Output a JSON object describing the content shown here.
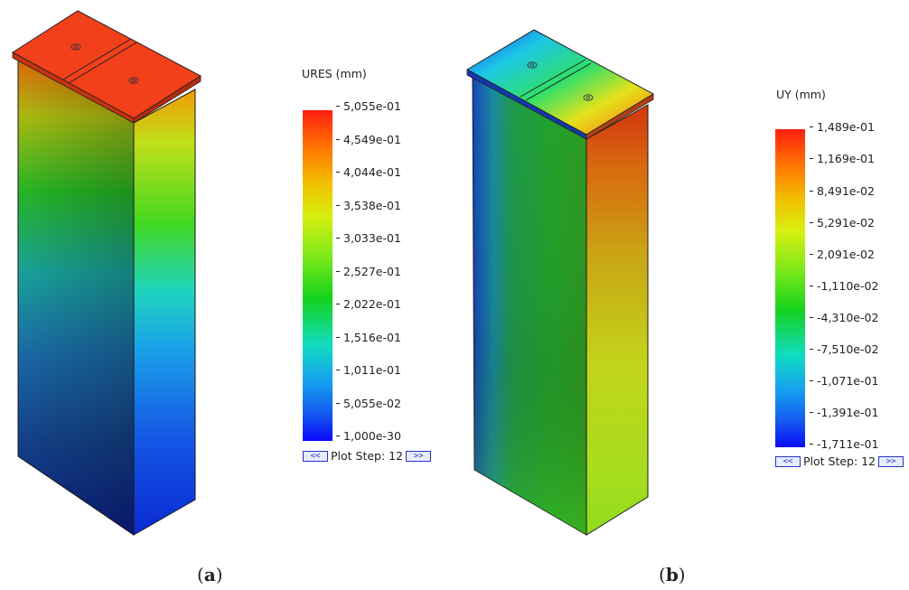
{
  "figure": {
    "panels": [
      {
        "caption_open": "(",
        "caption_letter": "a",
        "caption_close": ")",
        "legend_title": "URES (mm)",
        "ticks": [
          "5,055e-01",
          "4,549e-01",
          "4,044e-01",
          "3,538e-01",
          "3,033e-01",
          "2,527e-01",
          "2,022e-01",
          "1,516e-01",
          "1,011e-01",
          "5,055e-02",
          "1,000e-30"
        ],
        "plot_step_prev": "<<",
        "plot_step_label": "Plot Step: 12",
        "plot_step_next": ">>"
      },
      {
        "caption_open": "(",
        "caption_letter": "b",
        "caption_close": ")",
        "legend_title": "UY (mm)",
        "ticks": [
          "1,489e-01",
          "1,169e-01",
          "8,491e-02",
          "5,291e-02",
          "2,091e-02",
          "-1,110e-02",
          "-4,310e-02",
          "-7,510e-02",
          "-1,071e-01",
          "-1,391e-01",
          "-1,711e-01"
        ],
        "plot_step_prev": "<<",
        "plot_step_label": "Plot Step: 12",
        "plot_step_next": ">>"
      }
    ]
  },
  "colors": {
    "max": "#ff1f10",
    "mid": "#14d21e",
    "min": "#0a0afc",
    "step_button": "#2434c8"
  }
}
